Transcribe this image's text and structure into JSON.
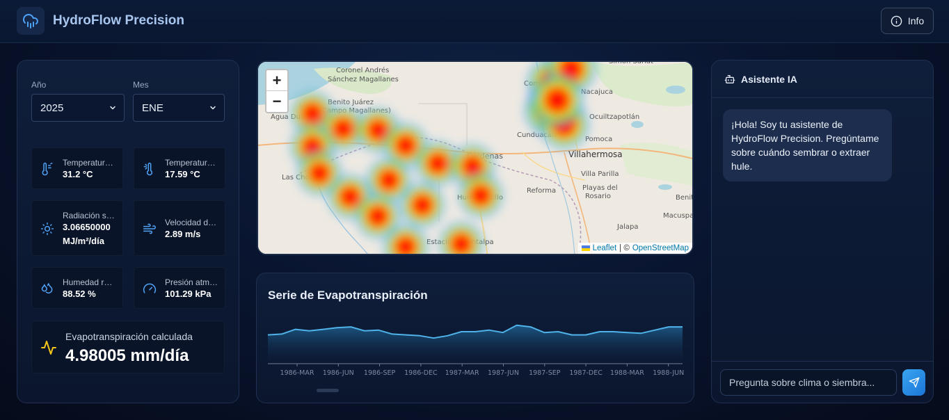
{
  "header": {
    "title": "HydroFlow Precision",
    "info_label": "Info"
  },
  "filters": {
    "year_label": "Año",
    "year_value": "2025",
    "month_label": "Mes",
    "month_value": "ENE"
  },
  "metrics": [
    {
      "name": "Temperatura máxima",
      "value": "31.2 °C",
      "icon": "thermometer-hot-icon"
    },
    {
      "name": "Temperatura mínima",
      "value": "17.59 °C",
      "icon": "thermometer-cold-icon"
    },
    {
      "name": "Radiación solar",
      "value": "3.06650000",
      "value2": "MJ/m²/día",
      "icon": "sun-icon"
    },
    {
      "name": "Velocidad del viento",
      "value": "2.89 m/s",
      "icon": "wind-icon"
    },
    {
      "name": "Humedad relativa",
      "value": "88.52 %",
      "icon": "droplets-icon"
    },
    {
      "name": "Presión atmosférica",
      "value": "101.29 kPa",
      "icon": "gauge-icon"
    }
  ],
  "evapotranspiration": {
    "label": "Evapotranspiración calculada",
    "value": "4.98005 mm/día",
    "icon": "activity-icon"
  },
  "map": {
    "attribution_leaflet": "Leaflet",
    "attribution_sep": "| ©",
    "attribution_osm": "OpenStreetMap",
    "zoom_in": "+",
    "zoom_out": "−",
    "places": [
      "Coronel Andrés Sánchez Magallanes",
      "Benito Juárez (Campo Magallanes)",
      "Agua Dulce",
      "Las Choapas",
      "Cárdenas",
      "Villahermosa",
      "Comalcalco",
      "Nacajuca",
      "Cunduacán",
      "Pomoca",
      "Ocuiltzapotlán",
      "Reforma",
      "Playas del Rosario",
      "Villa Parilla",
      "Huimanguillo",
      "Estación Chontalpa",
      "Jalapa",
      "Macuspana",
      "Benito",
      "Simón Sarlat"
    ]
  },
  "chart": {
    "title": "Serie de Evapotranspiración"
  },
  "chart_data": {
    "type": "area",
    "x_tick_labels": [
      "1986-MAR",
      "1986-JUN",
      "1986-SEP",
      "1986-DEC",
      "1987-MAR",
      "1987-JUN",
      "1987-SEP",
      "1987-DEC",
      "1988-MAR",
      "1988-JUN"
    ],
    "values": [
      3.6,
      3.7,
      4.3,
      4.1,
      4.3,
      4.5,
      4.6,
      4.1,
      4.2,
      3.7,
      3.6,
      3.5,
      3.2,
      3.5,
      4.0,
      4.0,
      4.2,
      3.9,
      4.8,
      4.6,
      3.9,
      4.0,
      3.6,
      3.6,
      4.0,
      4.0,
      3.9,
      3.8,
      4.2,
      4.6,
      4.6
    ],
    "ylim": [
      0,
      8
    ],
    "grid": false,
    "colors": {
      "line": "#4fb3ea",
      "fill_top": "#1e5f8e",
      "fill_bottom": "#0b1730"
    }
  },
  "chat": {
    "title": "Asistente IA",
    "greeting": "¡Hola! Soy tu asistente de HydroFlow Precision. Pregúntame sobre cuándo sembrar o extraer hule.",
    "input_placeholder": "Pregunta sobre clima o siembra..."
  },
  "colors": {
    "accent": "#4fa3f7",
    "evap_icon": "#f5c518",
    "send_button": "#2b8fe8"
  }
}
